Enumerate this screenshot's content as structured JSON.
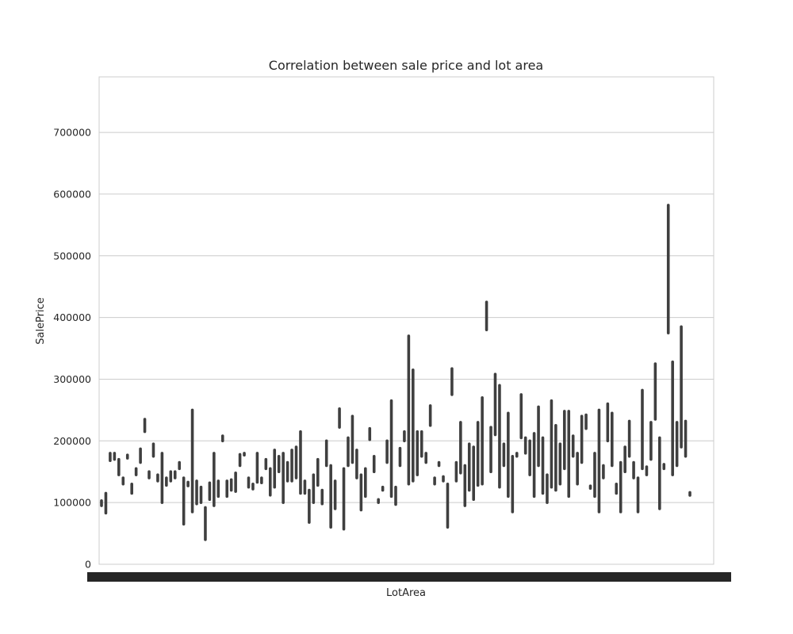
{
  "chart_data": {
    "type": "bar",
    "title": "Correlation between sale price and lot area",
    "xlabel": "LotArea",
    "ylabel": "SalePrice",
    "ylim": [
      0,
      790000
    ],
    "yticks": [
      0,
      100000,
      200000,
      300000,
      400000,
      500000,
      600000,
      700000
    ],
    "grid": true,
    "style": "seaborn whitegrid: thin dark error-bar lines per LotArea category",
    "x_tick_labels_overlapping": true,
    "series": [
      {
        "name": "",
        "color": "#3f3f3f",
        "ranges": [
          [
            95000,
            103000
          ],
          [
            83000,
            115000
          ],
          [
            168000,
            180000
          ],
          [
            170000,
            180000
          ],
          [
            145000,
            170000
          ],
          [
            130000,
            140000
          ],
          [
            172000,
            177000
          ],
          [
            115000,
            130000
          ],
          [
            145000,
            155000
          ],
          [
            165000,
            187000
          ],
          [
            215000,
            235000
          ],
          [
            140000,
            150000
          ],
          [
            175000,
            195000
          ],
          [
            135000,
            145000
          ],
          [
            100000,
            180000
          ],
          [
            128000,
            140000
          ],
          [
            135000,
            150000
          ],
          [
            140000,
            150000
          ],
          [
            155000,
            165000
          ],
          [
            65000,
            140000
          ],
          [
            127000,
            133000
          ],
          [
            85000,
            250000
          ],
          [
            98000,
            135000
          ],
          [
            100000,
            125000
          ],
          [
            40000,
            92000
          ],
          [
            105000,
            132000
          ],
          [
            95000,
            180000
          ],
          [
            110000,
            135000
          ],
          [
            200000,
            208000
          ],
          [
            110000,
            135000
          ],
          [
            120000,
            137000
          ],
          [
            118000,
            148000
          ],
          [
            160000,
            178000
          ],
          [
            177000,
            180000
          ],
          [
            125000,
            140000
          ],
          [
            122000,
            130000
          ],
          [
            133000,
            180000
          ],
          [
            132000,
            140000
          ],
          [
            155000,
            170000
          ],
          [
            112000,
            155000
          ],
          [
            125000,
            185000
          ],
          [
            150000,
            175000
          ],
          [
            100000,
            180000
          ],
          [
            135000,
            165000
          ],
          [
            135000,
            185000
          ],
          [
            140000,
            190000
          ],
          [
            115000,
            215000
          ],
          [
            115000,
            135000
          ],
          [
            68000,
            120000
          ],
          [
            100000,
            145000
          ],
          [
            128000,
            170000
          ],
          [
            98000,
            120000
          ],
          [
            160000,
            200000
          ],
          [
            60000,
            160000
          ],
          [
            90000,
            135000
          ],
          [
            222000,
            252000
          ],
          [
            57000,
            155000
          ],
          [
            160000,
            205000
          ],
          [
            165000,
            240000
          ],
          [
            140000,
            185000
          ],
          [
            88000,
            145000
          ],
          [
            110000,
            155000
          ],
          [
            202000,
            220000
          ],
          [
            150000,
            175000
          ],
          [
            100000,
            105000
          ],
          [
            120000,
            125000
          ],
          [
            165000,
            200000
          ],
          [
            110000,
            265000
          ],
          [
            97000,
            125000
          ],
          [
            160000,
            188000
          ],
          [
            200000,
            215000
          ],
          [
            130000,
            370000
          ],
          [
            135000,
            315000
          ],
          [
            145000,
            215000
          ],
          [
            175000,
            215000
          ],
          [
            165000,
            180000
          ],
          [
            225000,
            257000
          ],
          [
            130000,
            140000
          ],
          [
            160000,
            165000
          ],
          [
            135000,
            142000
          ],
          [
            60000,
            130000
          ],
          [
            275000,
            317000
          ],
          [
            135000,
            165000
          ],
          [
            148000,
            230000
          ],
          [
            95000,
            160000
          ],
          [
            120000,
            195000
          ],
          [
            105000,
            190000
          ],
          [
            128000,
            230000
          ],
          [
            130000,
            270000
          ],
          [
            380000,
            425000
          ],
          [
            150000,
            222000
          ],
          [
            210000,
            308000
          ],
          [
            125000,
            290000
          ],
          [
            160000,
            195000
          ],
          [
            110000,
            245000
          ],
          [
            85000,
            175000
          ],
          [
            175000,
            180000
          ],
          [
            205000,
            275000
          ],
          [
            180000,
            205000
          ],
          [
            145000,
            200000
          ],
          [
            110000,
            212000
          ],
          [
            160000,
            255000
          ],
          [
            115000,
            205000
          ],
          [
            100000,
            145000
          ],
          [
            125000,
            265000
          ],
          [
            120000,
            225000
          ],
          [
            130000,
            195000
          ],
          [
            155000,
            248000
          ],
          [
            110000,
            248000
          ],
          [
            175000,
            208000
          ],
          [
            130000,
            180000
          ],
          [
            165000,
            240000
          ],
          [
            220000,
            242000
          ],
          [
            123000,
            127000
          ],
          [
            110000,
            180000
          ],
          [
            85000,
            250000
          ],
          [
            140000,
            160000
          ],
          [
            200000,
            260000
          ],
          [
            160000,
            245000
          ],
          [
            115000,
            130000
          ],
          [
            85000,
            165000
          ],
          [
            150000,
            190000
          ],
          [
            175000,
            232000
          ],
          [
            140000,
            165000
          ],
          [
            85000,
            140000
          ],
          [
            155000,
            282000
          ],
          [
            145000,
            158000
          ],
          [
            170000,
            230000
          ],
          [
            235000,
            325000
          ],
          [
            90000,
            205000
          ],
          [
            155000,
            162000
          ],
          [
            375000,
            582000
          ],
          [
            145000,
            328000
          ],
          [
            160000,
            230000
          ],
          [
            190000,
            385000
          ],
          [
            175000,
            232000
          ],
          [
            113000,
            115000
          ]
        ]
      }
    ]
  }
}
